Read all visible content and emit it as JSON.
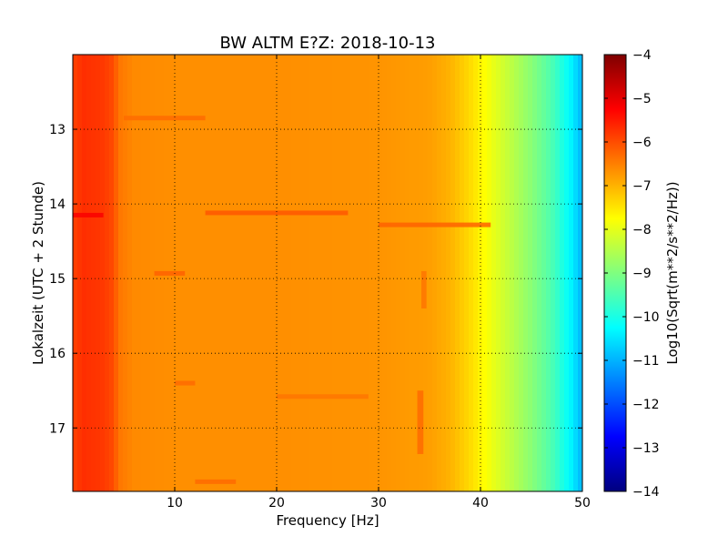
{
  "chart_data": {
    "type": "heatmap",
    "title": "BW ALTM E?Z: 2018-10-13",
    "xlabel": "Frequency [Hz]",
    "ylabel": "Lokalzeit (UTC + 2 Stunde)",
    "xlim": [
      0,
      50
    ],
    "ylim": [
      12.0,
      17.85
    ],
    "y_axis_inverted": true,
    "x_ticks": [
      10,
      20,
      30,
      40,
      50
    ],
    "x_tick_labels": [
      "10",
      "20",
      "30",
      "40",
      "50"
    ],
    "y_ticks": [
      13,
      14,
      15,
      16,
      17
    ],
    "y_tick_labels": [
      "13",
      "14",
      "15",
      "16",
      "17"
    ],
    "grid": true,
    "colormap": "jet",
    "colorbar": {
      "label": "Log10(Sqrt(m**2/s**2/Hz))",
      "range": [
        -14,
        -4
      ],
      "ticks": [
        -4,
        -5,
        -6,
        -7,
        -8,
        -9,
        -10,
        -11,
        -12,
        -13,
        -14
      ],
      "tick_labels": [
        "−4",
        "−5",
        "−6",
        "−7",
        "−8",
        "−9",
        "−10",
        "−11",
        "−12",
        "−13",
        "−14"
      ]
    },
    "spectrum_profile": [
      [
        0,
        -5.9
      ],
      [
        1,
        -5.7
      ],
      [
        3,
        -5.8
      ],
      [
        4,
        -6.0
      ],
      [
        4.5,
        -6.4
      ],
      [
        6,
        -6.6
      ],
      [
        10,
        -6.65
      ],
      [
        20,
        -6.65
      ],
      [
        30,
        -6.7
      ],
      [
        35,
        -6.8
      ],
      [
        37,
        -7.0
      ],
      [
        39,
        -7.4
      ],
      [
        41,
        -7.9
      ],
      [
        43,
        -8.4
      ],
      [
        45,
        -8.9
      ],
      [
        47,
        -9.5
      ],
      [
        49,
        -10.4
      ],
      [
        50,
        -11.0
      ]
    ],
    "features": [
      {
        "x": [
          13,
          27
        ],
        "y": 14.12,
        "value": -6.1
      },
      {
        "x": [
          30,
          41
        ],
        "y": 14.28,
        "value": -6.2
      },
      {
        "x": [
          0,
          3
        ],
        "y": 14.15,
        "value": -5.2
      },
      {
        "x": [
          5,
          13
        ],
        "y": 12.85,
        "value": -6.3
      },
      {
        "x": [
          8,
          11
        ],
        "y": 14.93,
        "value": -6.2
      },
      {
        "x": [
          10,
          12
        ],
        "y": 16.4,
        "value": -6.3
      },
      {
        "x": [
          12,
          16
        ],
        "y": 17.72,
        "value": -6.3
      },
      {
        "x": [
          20,
          29
        ],
        "y": 16.58,
        "value": -6.4
      },
      {
        "x": [
          33.8,
          34.4
        ],
        "y": [
          16.5,
          17.35
        ],
        "value": -6.3
      },
      {
        "x": [
          34.2,
          34.7
        ],
        "y": [
          14.9,
          15.4
        ],
        "value": -6.4
      }
    ]
  }
}
